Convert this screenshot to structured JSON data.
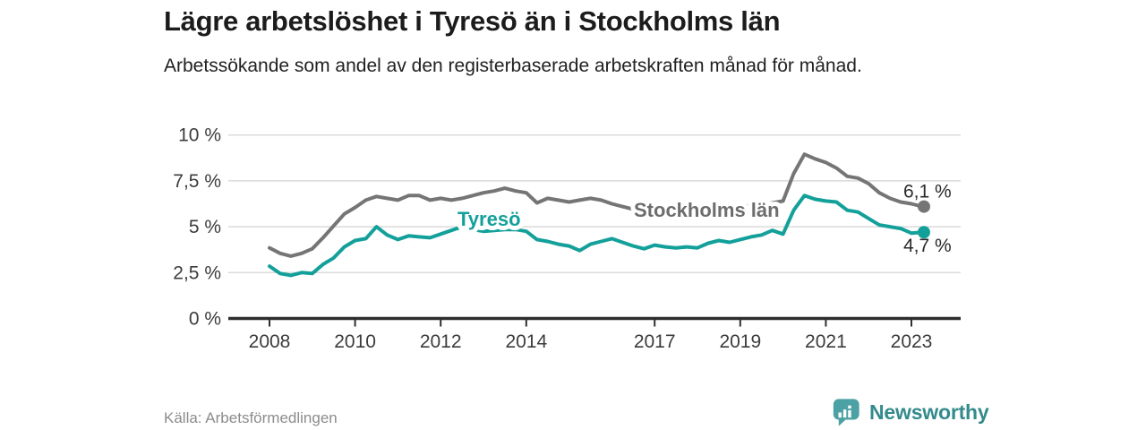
{
  "header": {
    "title": "Lägre arbetslöshet i Tyresö än i Stockholms län",
    "subtitle": "Arbetssökande som andel av den registerbaserade arbetskraften månad för månad."
  },
  "footer": {
    "source": "Källa: Arbetsförmedlingen",
    "brand": "Newsworthy"
  },
  "colors": {
    "tyreso": "#14a09a",
    "stockholm": "#757575",
    "stockholm_label": "#6d6d6d",
    "grid": "#dadada",
    "axis": "#2e2e2e",
    "tick_text": "#3c3c3c",
    "value_text": "#2b2b2b",
    "title_text": "#1c1c1c",
    "source_text": "#8c8c8c",
    "brand_text": "#338a8c",
    "brand_icon": "#4ba1a3"
  },
  "chart_data": {
    "type": "line",
    "unit": "%",
    "title": "Lägre arbetslöshet i Tyresö än i Stockholms län",
    "xlabel": "",
    "ylabel": "",
    "ylim": [
      0,
      10
    ],
    "xlim": [
      2007.0,
      2024.2
    ],
    "grid": true,
    "legend": "inline-labels",
    "x_start": 2008.0,
    "x_step_years": 0.25,
    "y_ticks": [
      {
        "value": 0,
        "label": "0 %"
      },
      {
        "value": 2.5,
        "label": "2,5 %"
      },
      {
        "value": 5,
        "label": "5 %"
      },
      {
        "value": 7.5,
        "label": "7,5 %"
      },
      {
        "value": 10,
        "label": "10 %"
      }
    ],
    "x_ticks": [
      {
        "value": 2008,
        "label": "2008"
      },
      {
        "value": 2010,
        "label": "2010"
      },
      {
        "value": 2012,
        "label": "2012"
      },
      {
        "value": 2014,
        "label": "2014"
      },
      {
        "value": 2017,
        "label": "2017"
      },
      {
        "value": 2019,
        "label": "2019"
      },
      {
        "value": 2021,
        "label": "2021"
      },
      {
        "value": 2023,
        "label": "2023"
      }
    ],
    "series": [
      {
        "name": "Stockholms län",
        "color_key": "stockholm",
        "end_label": "6,1 %",
        "end_value": 6.1,
        "values": [
          3.85,
          3.55,
          3.4,
          3.55,
          3.8,
          4.4,
          5.05,
          5.7,
          6.05,
          6.45,
          6.65,
          6.55,
          6.45,
          6.7,
          6.7,
          6.45,
          6.55,
          6.45,
          6.55,
          6.7,
          6.85,
          6.95,
          7.1,
          6.95,
          6.85,
          6.3,
          6.55,
          6.45,
          6.35,
          6.45,
          6.55,
          6.45,
          6.25,
          6.1,
          5.95,
          6.0,
          6.05,
          6.05,
          6.0,
          6.0,
          6.0,
          6.05,
          6.05,
          6.1,
          6.1,
          6.15,
          6.2,
          6.3,
          6.4,
          7.9,
          8.95,
          8.7,
          8.5,
          8.2,
          7.75,
          7.65,
          7.35,
          6.85,
          6.55,
          6.35,
          6.25,
          6.1
        ]
      },
      {
        "name": "Tyresö",
        "color_key": "tyreso",
        "end_label": "4,7 %",
        "end_value": 4.7,
        "values": [
          2.85,
          2.45,
          2.35,
          2.5,
          2.45,
          2.95,
          3.3,
          3.9,
          4.25,
          4.35,
          5.0,
          4.55,
          4.3,
          4.5,
          4.45,
          4.4,
          4.6,
          4.8,
          5.0,
          4.85,
          4.75,
          4.8,
          4.85,
          4.85,
          4.75,
          4.3,
          4.2,
          4.05,
          3.95,
          3.7,
          4.05,
          4.2,
          4.35,
          4.15,
          3.95,
          3.8,
          4.0,
          3.9,
          3.85,
          3.9,
          3.85,
          4.1,
          4.25,
          4.15,
          4.3,
          4.45,
          4.55,
          4.8,
          4.6,
          5.9,
          6.7,
          6.5,
          6.4,
          6.35,
          5.9,
          5.8,
          5.45,
          5.1,
          5.0,
          4.9,
          4.65,
          4.7
        ]
      }
    ]
  }
}
